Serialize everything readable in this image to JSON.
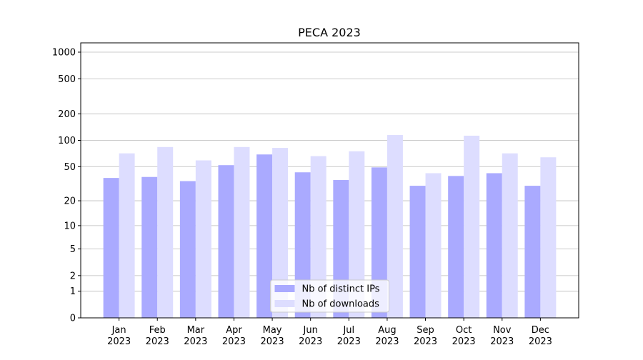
{
  "chart_data": {
    "type": "bar",
    "title": "PECA 2023",
    "categories": [
      "Jan 2023",
      "Feb 2023",
      "Mar 2023",
      "Apr 2023",
      "May 2023",
      "Jun 2023",
      "Jul 2023",
      "Aug 2023",
      "Sep 2023",
      "Oct 2023",
      "Nov 2023",
      "Dec 2023"
    ],
    "series": [
      {
        "name": "Nb of distinct IPs",
        "color": "#aaaaff",
        "values": [
          37,
          38,
          34,
          52,
          69,
          43,
          35,
          49,
          30,
          39,
          42,
          30
        ]
      },
      {
        "name": "Nb of downloads",
        "color": "#ddddff",
        "values": [
          71,
          84,
          59,
          84,
          82,
          66,
          75,
          115,
          42,
          113,
          71,
          64
        ]
      }
    ],
    "yscale": "log1p",
    "ylim": [
      0,
      1273
    ],
    "yticks": [
      0,
      1,
      2,
      5,
      10,
      20,
      50,
      100,
      200,
      500,
      1000
    ],
    "grid": true,
    "legend": "lower center"
  }
}
